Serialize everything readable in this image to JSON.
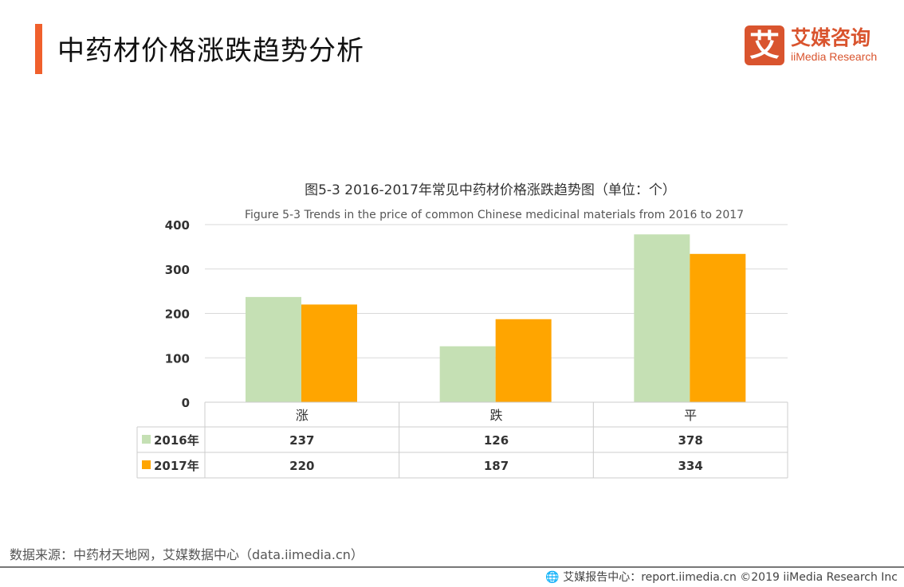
{
  "header": {
    "title": "中药材价格涨跌趋势分析"
  },
  "logo": {
    "mark": "艾",
    "cn": "艾媒咨询",
    "en": "iiMedia Research"
  },
  "source": "数据来源：中药材天地网，艾媒数据中心（data.iimedia.cn）",
  "footer": {
    "icon": "globe-icon",
    "text": "艾媒报告中心：report.iimedia.cn  ©2019  iiMedia Research  Inc"
  },
  "chart_data": {
    "type": "bar",
    "title": "图5-3 2016-2017年常见中药材价格涨跌趋势图（单位：个）",
    "subtitle": "Figure 5-3 Trends in the price of common Chinese medicinal materials from 2016 to 2017",
    "categories": [
      "涨",
      "跌",
      "平"
    ],
    "series": [
      {
        "name": "2016年",
        "values": [
          237,
          126,
          378
        ],
        "color": "#c5e0b4"
      },
      {
        "name": "2017年",
        "values": [
          220,
          187,
          334
        ],
        "color": "#ffa500"
      }
    ],
    "ylim": [
      0,
      400
    ],
    "yticks": [
      0,
      100,
      200,
      300,
      400
    ],
    "grid": true,
    "legend": "data-table"
  }
}
